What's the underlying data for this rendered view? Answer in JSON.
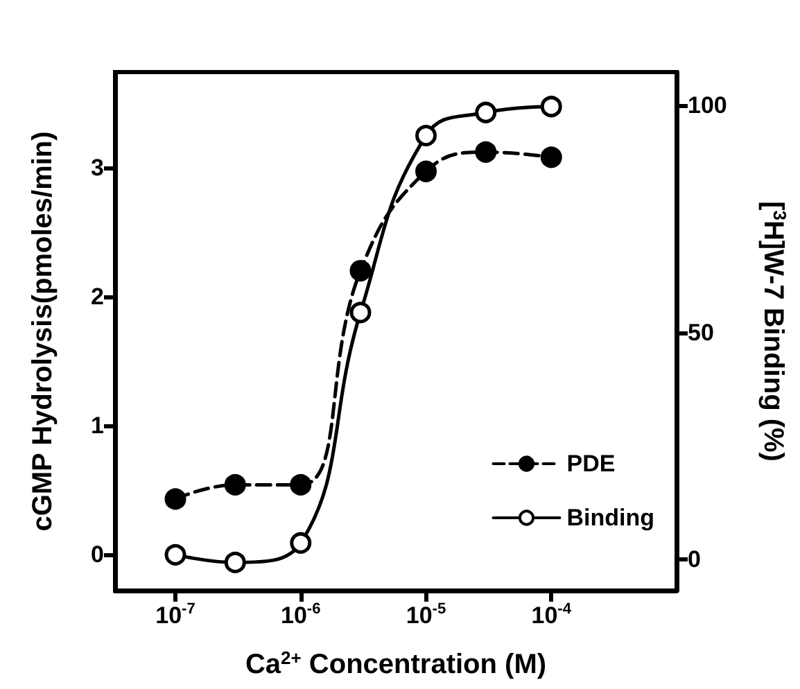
{
  "chart_data": {
    "type": "line",
    "xlabel": "Ca$^{2+}$ Concentration (M)",
    "ylabel": "cGMP Hydrolysis(pmoles/min)",
    "y2label": "[$^{3}$H]W-7 Binding (%)",
    "x": [
      1e-07,
      3e-07,
      1e-06,
      3e-06,
      1e-05,
      3e-05,
      0.0001
    ],
    "series": [
      {
        "name": "PDE",
        "color": "#000000",
        "line_style": "dashed",
        "marker": "circle",
        "values": [
          0.43,
          0.54,
          0.54,
          2.2,
          2.97,
          3.12,
          3.08
        ]
      },
      {
        "name": "Binding",
        "color": "#000000",
        "line_style": "solid",
        "marker": "circle",
        "axis": "y2",
        "values": [
          1,
          -0.7,
          3.6,
          54.4,
          93.4,
          98.5,
          99.8
        ]
      }
    ],
    "log": "x",
    "xlim": [
      3.3e-08,
      0.001
    ],
    "xticks": [
      {
        "value": 1e-07,
        "label": "10$^{-7}$"
      },
      {
        "value": 1e-06,
        "label": "10$^{-6}$"
      },
      {
        "value": 1e-05,
        "label": "10$^{-5}$"
      },
      {
        "value": 0.0001,
        "label": "10$^{-4}$"
      }
    ],
    "ylim": [
      -0.28,
      3.74
    ],
    "yticks": [
      0,
      1,
      2,
      3
    ],
    "y2lim": [
      -6.9,
      107.4
    ],
    "y2ticks": [
      0,
      50,
      100
    ],
    "grid": false,
    "legend": "bottom right"
  }
}
